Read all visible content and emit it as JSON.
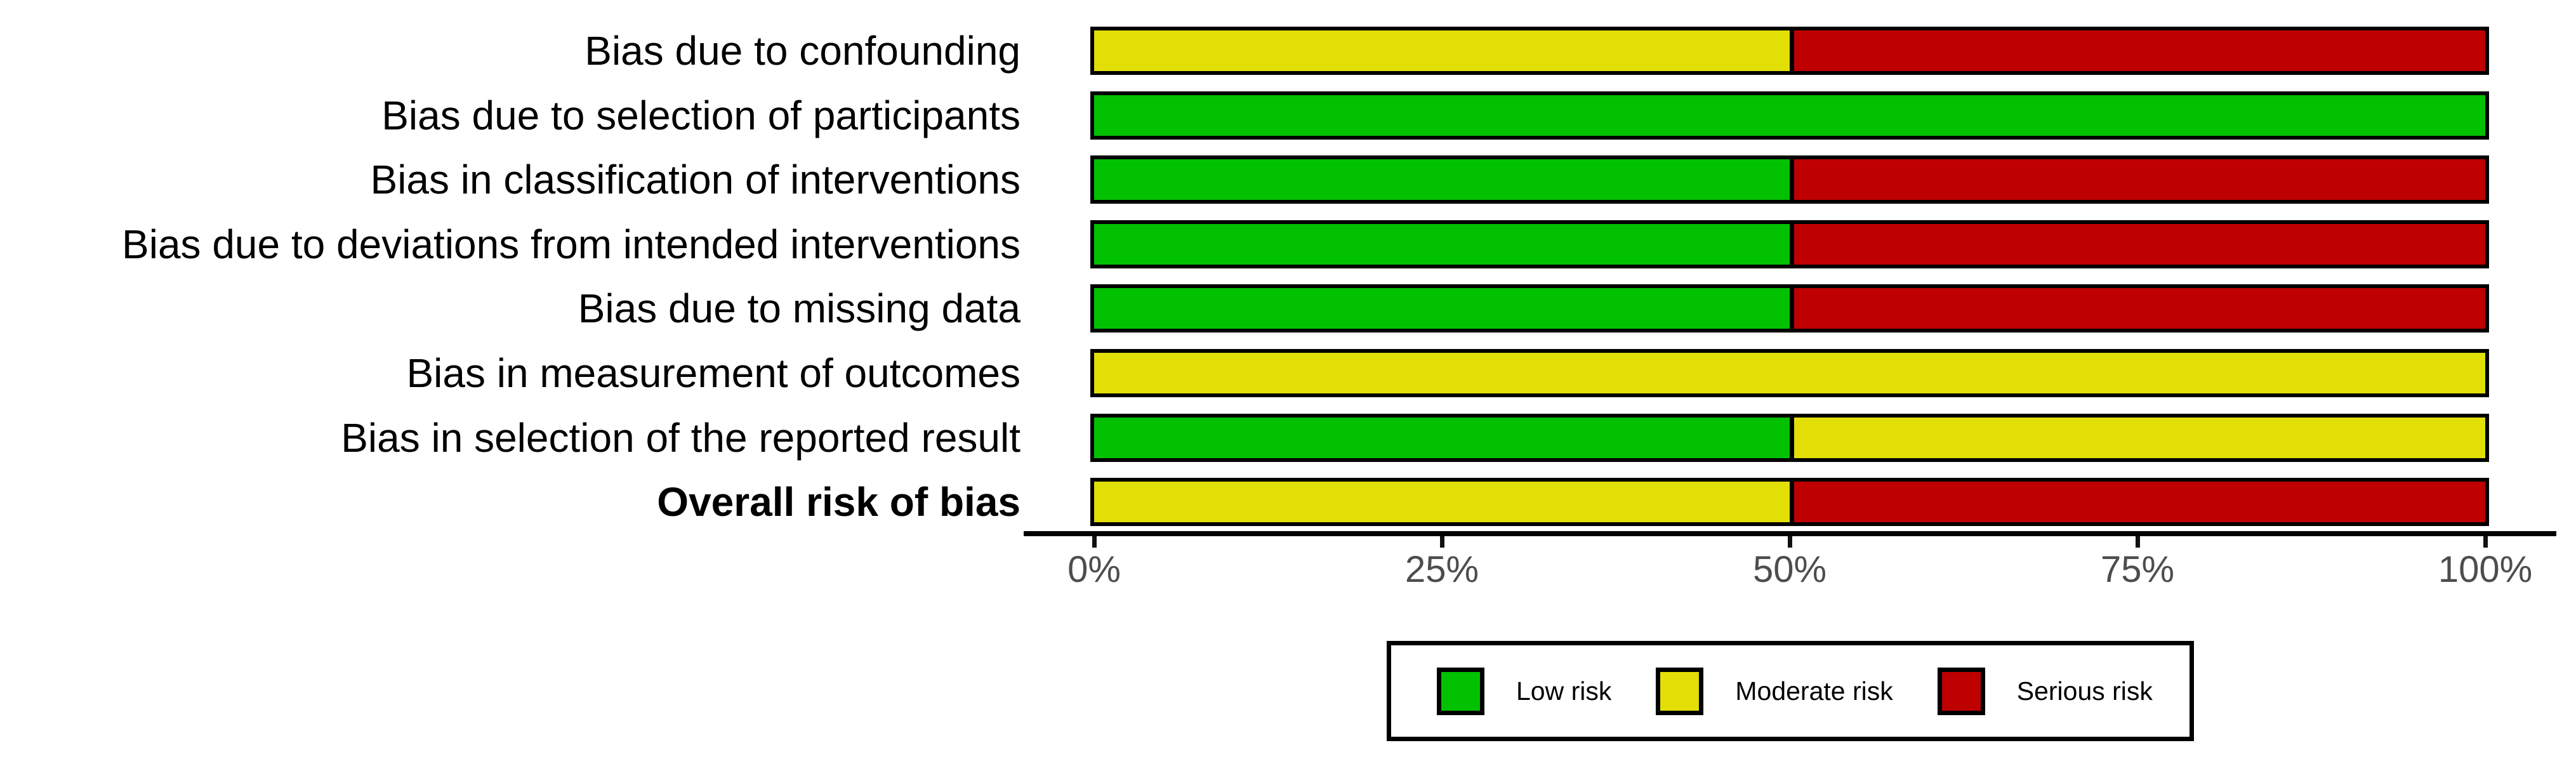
{
  "chart_data": {
    "type": "bar",
    "orientation": "horizontal",
    "stacked": true,
    "title": "",
    "xlabel": "",
    "ylabel": "",
    "xlim": [
      0,
      100
    ],
    "x_ticks": [
      "0%",
      "25%",
      "50%",
      "75%",
      "100%"
    ],
    "grid": false,
    "categories": [
      "Bias due to confounding",
      "Bias due to selection of participants",
      "Bias in classification of interventions",
      "Bias due to deviations from intended interventions",
      "Bias due to missing data",
      "Bias in measurement of outcomes",
      "Bias in selection of the reported result",
      "Overall risk of bias"
    ],
    "bold_categories": [
      "Overall risk of bias"
    ],
    "series": [
      {
        "name": "Low risk",
        "color": "#02c100",
        "values": [
          0,
          100,
          50,
          50,
          50,
          0,
          50,
          0
        ]
      },
      {
        "name": "Moderate risk",
        "color": "#e2df07",
        "values": [
          50,
          0,
          0,
          0,
          0,
          100,
          50,
          50
        ]
      },
      {
        "name": "Serious risk",
        "color": "#bf0000",
        "values": [
          50,
          0,
          50,
          50,
          50,
          0,
          0,
          50
        ]
      }
    ],
    "legend": {
      "position": "bottom",
      "entries": [
        {
          "label": "Low risk",
          "color": "#02c100"
        },
        {
          "label": "Moderate risk",
          "color": "#e2df07"
        },
        {
          "label": "Serious risk",
          "color": "#bf0000"
        }
      ]
    }
  },
  "colors": {
    "bar_border": "#000000",
    "axis_line": "#000000",
    "tick_label": "#4d4d4d",
    "category_label": "#000000",
    "background": "#ffffff"
  }
}
